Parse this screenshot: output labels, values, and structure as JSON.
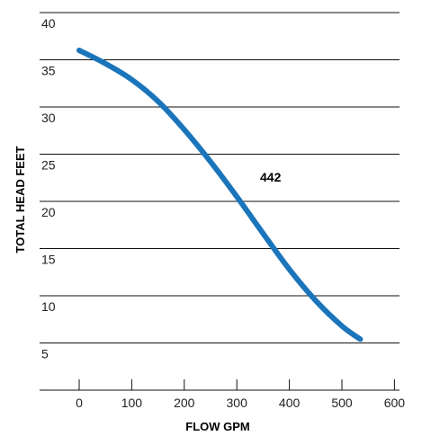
{
  "chart_data": {
    "type": "line",
    "xlabel": "FLOW GPM",
    "ylabel": "TOTAL HEAD FEET",
    "xlim": [
      0,
      600
    ],
    "ylim": [
      0,
      40
    ],
    "x_ticks": [
      "0",
      "100",
      "200",
      "300",
      "400",
      "500",
      "600"
    ],
    "y_ticks": [
      "5",
      "10",
      "15",
      "20",
      "25",
      "30",
      "35",
      "40"
    ],
    "grid": "horizontal",
    "curve_color": "#1b75bb",
    "series": [
      {
        "name": "442",
        "x": [
          0,
          50,
          100,
          150,
          200,
          250,
          300,
          350,
          400,
          450,
          500,
          535
        ],
        "y": [
          36,
          34.6,
          32.9,
          30.6,
          27.6,
          24.2,
          20.5,
          16.6,
          12.8,
          9.5,
          6.8,
          5.4
        ]
      }
    ]
  }
}
